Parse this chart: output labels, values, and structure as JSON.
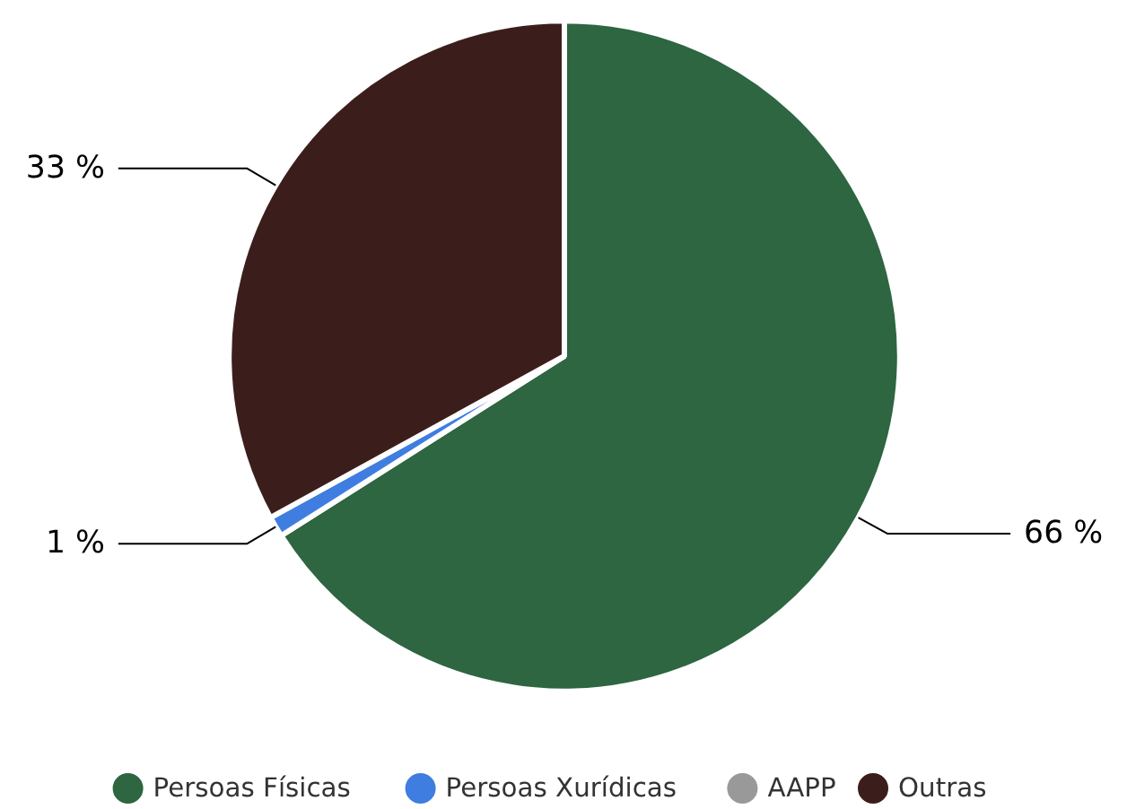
{
  "chart_data": {
    "type": "pie",
    "categories": [
      "Persoas Físicas",
      "Persoas Xurídicas",
      "AAPP",
      "Outras"
    ],
    "values": [
      66,
      1,
      0,
      33
    ],
    "colors": [
      "#2d6640",
      "#3f7ee0",
      "#999999",
      "#3b1e1b"
    ],
    "value_labels": [
      "66 %",
      "1 %",
      null,
      "33 %"
    ],
    "legend": "bottom"
  }
}
